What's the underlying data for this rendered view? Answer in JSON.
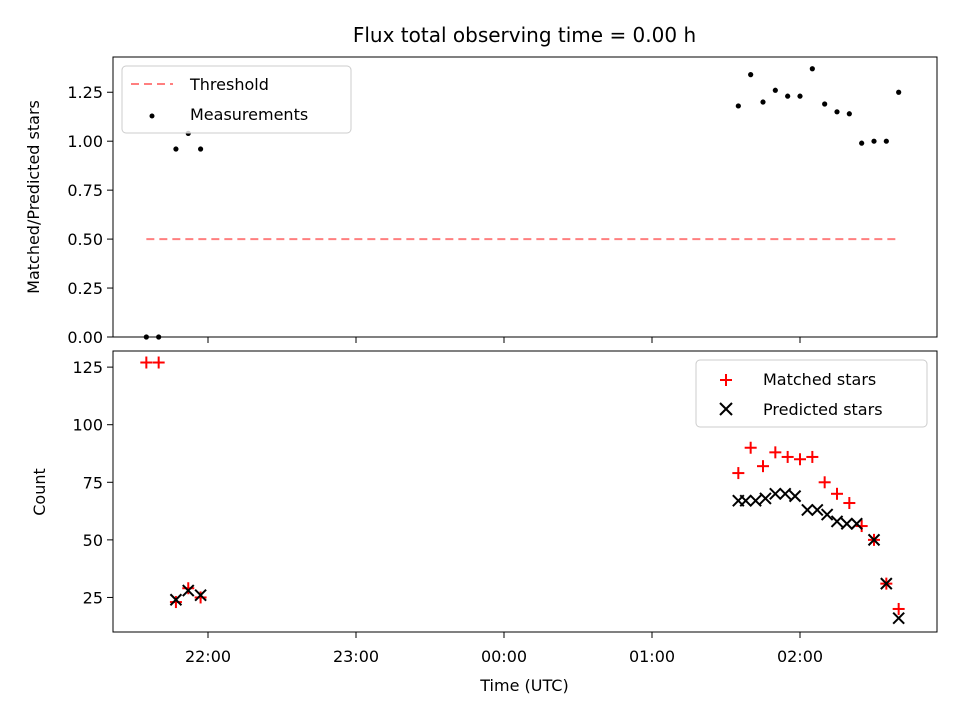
{
  "chart_data": [
    {
      "type": "scatter",
      "title": "Flux total observing time = 0.00 h",
      "xlabel": "",
      "ylabel": "Matched/Predicted stars",
      "ylim": [
        0.0,
        1.43
      ],
      "yticks": [
        "0.00",
        "0.25",
        "0.50",
        "0.75",
        "1.00",
        "1.25"
      ],
      "legend_position": "top-left",
      "grid": false,
      "colors": {
        "threshold": "#ff7f7f",
        "measurements": "#000000"
      },
      "series": [
        {
          "name": "Threshold",
          "style": "dashed-line",
          "x": [
            "21:35",
            "02:40"
          ],
          "y": [
            0.5,
            0.5
          ]
        },
        {
          "name": "Measurements",
          "style": "dot",
          "x": [
            "21:35",
            "21:40",
            "21:47",
            "21:52",
            "21:57",
            "01:35",
            "01:40",
            "01:45",
            "01:50",
            "01:55",
            "02:00",
            "02:05",
            "02:10",
            "02:15",
            "02:20",
            "02:25",
            "02:30",
            "02:35",
            "02:40"
          ],
          "y": [
            0.0,
            0.0,
            0.96,
            1.04,
            0.96,
            1.18,
            1.34,
            1.2,
            1.26,
            1.23,
            1.23,
            1.37,
            1.19,
            1.15,
            1.14,
            0.99,
            1.0,
            1.0,
            1.25
          ]
        }
      ]
    },
    {
      "type": "scatter",
      "title": "",
      "xlabel": "Time (UTC)",
      "ylabel": "Count",
      "ylim": [
        10,
        132
      ],
      "yticks": [
        "25",
        "50",
        "75",
        "100",
        "125"
      ],
      "xticks": [
        "22:00",
        "23:00",
        "00:00",
        "01:00",
        "02:00"
      ],
      "legend_position": "top-right",
      "grid": false,
      "colors": {
        "matched": "#ff0000",
        "predicted": "#000000"
      },
      "series": [
        {
          "name": "Matched stars",
          "marker": "plus",
          "x": [
            "21:35",
            "21:40",
            "21:47",
            "21:52",
            "21:57",
            "01:35",
            "01:40",
            "01:45",
            "01:50",
            "01:55",
            "02:00",
            "02:05",
            "02:10",
            "02:15",
            "02:20",
            "02:25",
            "02:30",
            "02:35",
            "02:40"
          ],
          "y": [
            127,
            127,
            23,
            29,
            25,
            79,
            90,
            82,
            88,
            86,
            85,
            86,
            75,
            70,
            66,
            56,
            50,
            31,
            20
          ]
        },
        {
          "name": "Predicted stars",
          "marker": "x",
          "x": [
            "21:47",
            "21:52",
            "21:57",
            "01:35",
            "01:38",
            "01:42",
            "01:46",
            "01:50",
            "01:54",
            "01:58",
            "02:03",
            "02:07",
            "02:11",
            "02:15",
            "02:19",
            "02:23",
            "02:30",
            "02:35",
            "02:40"
          ],
          "y": [
            24,
            28,
            26,
            67,
            67,
            67,
            68,
            70,
            70,
            69,
            63,
            63,
            61,
            58,
            57,
            57,
            50,
            31,
            16
          ]
        }
      ]
    }
  ]
}
